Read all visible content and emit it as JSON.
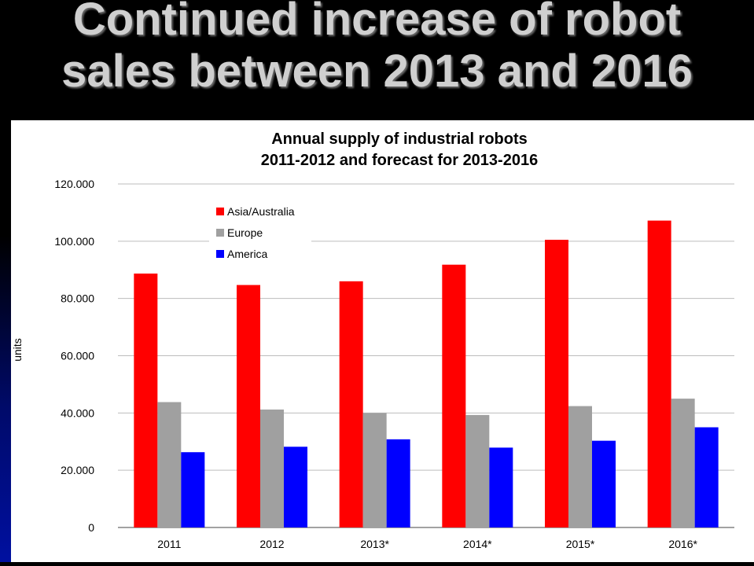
{
  "slide": {
    "title_line1": "Continued increase of robot",
    "title_line2": "sales between 2013 and 2016"
  },
  "chart_data": {
    "type": "bar",
    "title": "Annual supply of industrial robots",
    "subtitle": "2011-2012 and forecast for 2013-2016",
    "ylabel": "units",
    "xlabel": "",
    "categories": [
      "2011",
      "2012",
      "2013*",
      "2014*",
      "2015*",
      "2016*"
    ],
    "series": [
      {
        "name": "Asia/Australia",
        "color": "#ff0000",
        "values": [
          88700,
          84700,
          86000,
          91800,
          100500,
          107200
        ]
      },
      {
        "name": "Europe",
        "color": "#a0a0a0",
        "values": [
          43800,
          41200,
          40000,
          39300,
          42400,
          45000
        ]
      },
      {
        "name": "America",
        "color": "#0000ff",
        "values": [
          26300,
          28200,
          30800,
          27900,
          30300,
          35000
        ]
      }
    ],
    "ylim": [
      0,
      120000
    ],
    "yticks": [
      0,
      20000,
      40000,
      60000,
      80000,
      100000,
      120000
    ],
    "ytick_labels": [
      "0",
      "20.000",
      "40.000",
      "60.000",
      "80.000",
      "100.000",
      "120.000"
    ],
    "grid": true,
    "legend_position": "top-left"
  }
}
